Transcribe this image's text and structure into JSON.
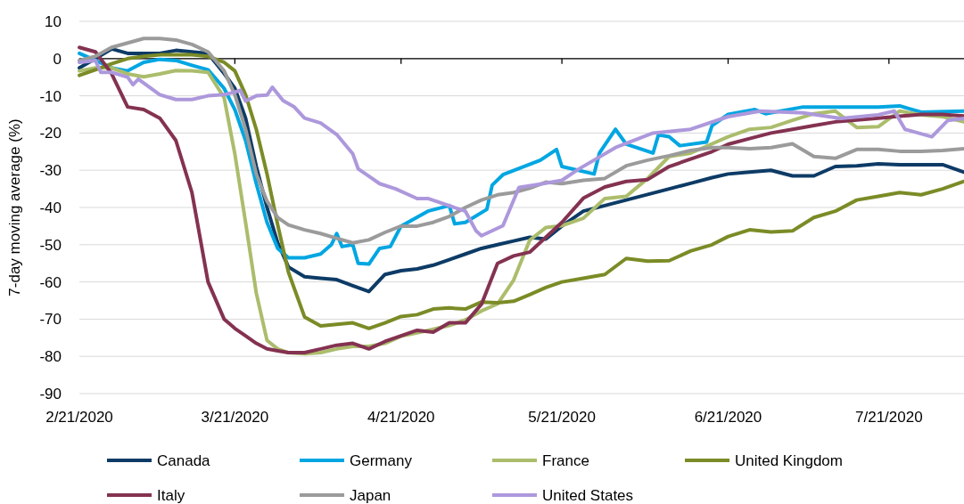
{
  "chart_data": {
    "type": "line",
    "ylabel": "7-day moving average (%)",
    "x": [
      "2020-02-21",
      "2020-02-24",
      "2020-02-27",
      "2020-03-01",
      "2020-03-04",
      "2020-03-07",
      "2020-03-10",
      "2020-03-13",
      "2020-03-16",
      "2020-03-19",
      "2020-03-21",
      "2020-03-23",
      "2020-03-25",
      "2020-03-27",
      "2020-03-29",
      "2020-03-31",
      "2020-04-03",
      "2020-04-06",
      "2020-04-09",
      "2020-04-12",
      "2020-04-15",
      "2020-04-18",
      "2020-04-21",
      "2020-04-24",
      "2020-04-27",
      "2020-04-30",
      "2020-05-03",
      "2020-05-06",
      "2020-05-09",
      "2020-05-12",
      "2020-05-15",
      "2020-05-18",
      "2020-05-21",
      "2020-05-25",
      "2020-05-29",
      "2020-06-02",
      "2020-06-06",
      "2020-06-10",
      "2020-06-14",
      "2020-06-18",
      "2020-06-21",
      "2020-06-25",
      "2020-06-29",
      "2020-07-03",
      "2020-07-07",
      "2020-07-11",
      "2020-07-15",
      "2020-07-19",
      "2020-07-23",
      "2020-07-27",
      "2020-07-31",
      "2020-08-04"
    ],
    "xlim": [
      "2020-02-21",
      "2020-08-04"
    ],
    "xticks": [
      {
        "value": "2020-02-21",
        "label": "2/21/2020"
      },
      {
        "value": "2020-03-21",
        "label": "3/21/2020"
      },
      {
        "value": "2020-04-21",
        "label": "4/21/2020"
      },
      {
        "value": "2020-05-21",
        "label": "5/21/2020"
      },
      {
        "value": "2020-06-21",
        "label": "6/21/2020"
      },
      {
        "value": "2020-07-21",
        "label": "7/21/2020"
      }
    ],
    "ylim": [
      -90,
      10
    ],
    "yticks": [
      -90,
      -80,
      -70,
      -60,
      -50,
      -40,
      -30,
      -20,
      -10,
      0,
      10
    ],
    "grid": "y",
    "legend": "bottom",
    "line_style": "solid",
    "marker": "none",
    "series": [
      {
        "name": "Canada",
        "color": "#0d3b66",
        "values": [
          -2.5,
          0,
          2.6,
          1.4,
          1.4,
          1.4,
          2.2,
          1.8,
          1.4,
          -4,
          -8,
          -16,
          -29,
          -40,
          -49.5,
          -56,
          -58.6,
          -59,
          -59.4,
          -61,
          -62.6,
          -58,
          -57,
          -56.5,
          -55.5,
          -54,
          -52.5,
          -51,
          -50,
          -49,
          -48,
          -48.5,
          -45,
          -41,
          -39.5,
          -38,
          -36.5,
          -35,
          -33.5,
          -32,
          -31,
          -30.5,
          -30,
          -31.5,
          -31.5,
          -29,
          -28.8,
          -28.3,
          -28.5,
          -28.5,
          -28.5,
          -30.5
        ]
      },
      {
        "name": "Germany",
        "color": "#00a6e2",
        "x": [
          "2020-02-21",
          "2020-02-24",
          "2020-02-27",
          "2020-03-01",
          "2020-03-04",
          "2020-03-07",
          "2020-03-10",
          "2020-03-13",
          "2020-03-16",
          "2020-03-19",
          "2020-03-21",
          "2020-03-23",
          "2020-03-25",
          "2020-03-27",
          "2020-03-29",
          "2020-03-31",
          "2020-04-03",
          "2020-04-06",
          "2020-04-08",
          "2020-04-09",
          "2020-04-10",
          "2020-04-12",
          "2020-04-13",
          "2020-04-15",
          "2020-04-17",
          "2020-04-19",
          "2020-04-21",
          "2020-04-26",
          "2020-04-30",
          "2020-05-01",
          "2020-05-03",
          "2020-05-07",
          "2020-05-08",
          "2020-05-10",
          "2020-05-17",
          "2020-05-20",
          "2020-05-21",
          "2020-05-27",
          "2020-05-28",
          "2020-05-31",
          "2020-06-02",
          "2020-06-07",
          "2020-06-08",
          "2020-06-10",
          "2020-06-12",
          "2020-06-17",
          "2020-06-18",
          "2020-06-21",
          "2020-06-26",
          "2020-06-28",
          "2020-07-05",
          "2020-07-19",
          "2020-07-23",
          "2020-07-27",
          "2020-08-04"
        ],
        "values": [
          1.4,
          -0.5,
          -2.5,
          -3.3,
          -1,
          -0.2,
          -0.5,
          -1.8,
          -3,
          -8,
          -13.7,
          -22,
          -33.6,
          -44,
          -51,
          -53.5,
          -53.5,
          -52.5,
          -50,
          -47,
          -50.5,
          -50,
          -55,
          -55.2,
          -51,
          -50.5,
          -45,
          -41,
          -39.5,
          -44.4,
          -44,
          -40.5,
          -34,
          -31.2,
          -27.3,
          -24.4,
          -29,
          -31,
          -25.4,
          -19,
          -23,
          -25.4,
          -20.5,
          -21,
          -23.4,
          -22.4,
          -18,
          -15,
          -13.7,
          -14.8,
          -13,
          -13,
          -12.7,
          -14.4,
          -14.1
        ]
      },
      {
        "name": "France",
        "color": "#abbd6c",
        "values": [
          -3.3,
          -2.5,
          -2.5,
          -4.1,
          -4.9,
          -4.1,
          -3.2,
          -3.3,
          -3.7,
          -10.5,
          -25.6,
          -44,
          -63,
          -75.7,
          -78,
          -79,
          -79.3,
          -79,
          -78,
          -77.3,
          -77.3,
          -76.5,
          -74.6,
          -73.7,
          -72.7,
          -71.7,
          -70.2,
          -67.8,
          -65.9,
          -59.5,
          -48.8,
          -45.4,
          -44.9,
          -42.9,
          -37.6,
          -37,
          -32.2,
          -26.3,
          -25.4,
          -22.9,
          -21,
          -19,
          -18.5,
          -16.6,
          -14.8,
          -14.1,
          -18.5,
          -18.3,
          -14.1,
          -15.1,
          -15.6,
          -17
        ]
      },
      {
        "name": "United Kingdom",
        "color": "#7b8b26",
        "values": [
          -4.5,
          -3,
          -1.4,
          0,
          0.6,
          1,
          1,
          1,
          0.6,
          -1,
          -3.3,
          -9.7,
          -19,
          -31,
          -44.7,
          -57.4,
          -69.4,
          -71.8,
          -71.4,
          -71,
          -72.5,
          -71,
          -69.3,
          -68.8,
          -67.3,
          -67,
          -67.3,
          -65.4,
          -65.6,
          -65.2,
          -63.4,
          -61.5,
          -60,
          -59,
          -58,
          -53.7,
          -54.4,
          -54.3,
          -51.7,
          -50,
          -47.8,
          -46,
          -46.6,
          -46.3,
          -42.7,
          -41,
          -38,
          -37,
          -36,
          -36.6,
          -35,
          -33
        ]
      },
      {
        "name": "Italy",
        "color": "#843251",
        "values": [
          3,
          1.8,
          -4,
          -13,
          -13.7,
          -16,
          -22,
          -36,
          -60,
          -70,
          -72.5,
          -74.5,
          -76.5,
          -78,
          -78.5,
          -79,
          -79,
          -78,
          -77,
          -76.5,
          -78,
          -76,
          -74.5,
          -73,
          -73.5,
          -71,
          -71,
          -66,
          -55,
          -53,
          -52,
          -48,
          -44,
          -37.5,
          -34.5,
          -33,
          -32.5,
          -29,
          -27,
          -25,
          -23,
          -21.5,
          -20,
          -19,
          -18,
          -17,
          -16.5,
          -16,
          -15.5,
          -15,
          -15,
          -15.4
        ]
      },
      {
        "name": "Japan",
        "color": "#9b9b9b",
        "values": [
          -0.5,
          0.6,
          3,
          4.2,
          5.4,
          5.4,
          5,
          3.8,
          1.8,
          -3.3,
          -9.7,
          -19,
          -31,
          -38.3,
          -42.7,
          -44.7,
          -46,
          -47,
          -48.3,
          -49.5,
          -48.7,
          -46.7,
          -45,
          -45,
          -44,
          -42.4,
          -40,
          -38,
          -36.6,
          -36,
          -34.8,
          -33.2,
          -33.6,
          -32.7,
          -32.2,
          -28.8,
          -27.3,
          -26.1,
          -24.7,
          -23.9,
          -23.9,
          -24.2,
          -23.9,
          -22.9,
          -26.3,
          -26.8,
          -24.4,
          -24.4,
          -24.9,
          -24.9,
          -24.7,
          -24.2
        ]
      },
      {
        "name": "United States",
        "color": "#ad98dc",
        "x": [
          "2020-02-21",
          "2020-02-24",
          "2020-02-25",
          "2020-02-27",
          "2020-03-01",
          "2020-03-02",
          "2020-03-03",
          "2020-03-07",
          "2020-03-10",
          "2020-03-13",
          "2020-03-16",
          "2020-03-19",
          "2020-03-21",
          "2020-03-22",
          "2020-03-23",
          "2020-03-25",
          "2020-03-27",
          "2020-03-28",
          "2020-03-30",
          "2020-04-01",
          "2020-04-03",
          "2020-04-06",
          "2020-04-09",
          "2020-04-12",
          "2020-04-13",
          "2020-04-15",
          "2020-04-17",
          "2020-04-20",
          "2020-04-24",
          "2020-04-26",
          "2020-05-03",
          "2020-05-05",
          "2020-05-06",
          "2020-05-10",
          "2020-05-13",
          "2020-05-17",
          "2020-05-21",
          "2020-05-24",
          "2020-05-31",
          "2020-06-07",
          "2020-06-14",
          "2020-06-21",
          "2020-06-27",
          "2020-07-05",
          "2020-07-12",
          "2020-07-19",
          "2020-07-22",
          "2020-07-24",
          "2020-07-29",
          "2020-08-01",
          "2020-08-04"
        ],
        "values": [
          -1,
          -0.5,
          -3.7,
          -3.7,
          -5,
          -7,
          -5.5,
          -9.7,
          -11,
          -11,
          -10,
          -9.7,
          -9,
          -8.5,
          -11.4,
          -10,
          -9.8,
          -7.7,
          -11.3,
          -12.9,
          -16,
          -17.3,
          -20.4,
          -25.6,
          -29.6,
          -31.6,
          -33.6,
          -35,
          -37.6,
          -37.6,
          -41,
          -46.3,
          -47.6,
          -44.9,
          -34.6,
          -33.7,
          -32.7,
          -29.8,
          -23.9,
          -20,
          -19,
          -15.6,
          -14.1,
          -14.6,
          -16.1,
          -15.1,
          -14.1,
          -19,
          -21,
          -16.6,
          -16.1
        ]
      }
    ]
  }
}
